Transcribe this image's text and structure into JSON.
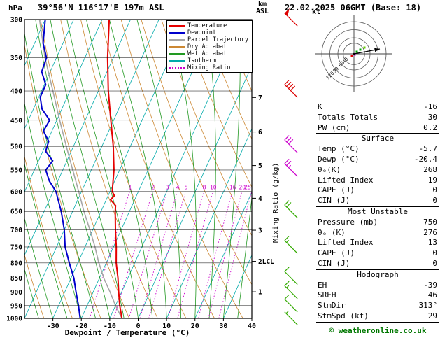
{
  "header": {
    "pressure_unit": "hPa",
    "station": "39°56'N 116°17'E 197m ASL",
    "datetime": "22.02.2025 06GMT (Base: 18)"
  },
  "legend": [
    {
      "label": "Temperature",
      "color": "#e60000",
      "style": "solid"
    },
    {
      "label": "Dewpoint",
      "color": "#0000cc",
      "style": "solid"
    },
    {
      "label": "Parcel Trajectory",
      "color": "#a6a6a6",
      "style": "solid"
    },
    {
      "label": "Dry Adiabat",
      "color": "#cc8833",
      "style": "solid"
    },
    {
      "label": "Wet Adiabat",
      "color": "#229922",
      "style": "solid"
    },
    {
      "label": "Isotherm",
      "color": "#00aaaa",
      "style": "solid"
    },
    {
      "label": "Mixing Ratio",
      "color": "#cc00cc",
      "style": "dotted"
    }
  ],
  "chart_data": {
    "type": "skew-t-log-p-sounding",
    "skew": 0.45,
    "pressure_axis": {
      "unit": "hPa",
      "levels": [
        300,
        350,
        400,
        450,
        500,
        550,
        600,
        650,
        700,
        750,
        800,
        850,
        900,
        950,
        1000
      ]
    },
    "temp_axis": {
      "label": "Dewpoint / Temperature (°C)",
      "min": -40,
      "max": 40,
      "ticks": [
        -30,
        -20,
        -10,
        0,
        10,
        20,
        30,
        40
      ]
    },
    "km_axis": {
      "unit_line1": "km",
      "unit_line2": "ASL",
      "lcl_km": 2,
      "lcl_label": "LCL",
      "ticks": [
        {
          "km": 1,
          "p": 898.7
        },
        {
          "km": 2,
          "p": 794.9
        },
        {
          "km": 3,
          "p": 701.1
        },
        {
          "km": 4,
          "p": 616.4
        },
        {
          "km": 5,
          "p": 540.2
        },
        {
          "km": 6,
          "p": 471.8
        },
        {
          "km": 7,
          "p": 410.6
        }
      ]
    },
    "mixing_ratio": {
      "label": "Mixing Ratio (g/kg)",
      "values": [
        1,
        2,
        3,
        4,
        5,
        8,
        10,
        16,
        20,
        25
      ]
    },
    "temperature_profile": [
      [
        1000,
        -5.7
      ],
      [
        950,
        -8.5
      ],
      [
        900,
        -11
      ],
      [
        850,
        -13.5
      ],
      [
        800,
        -16.5
      ],
      [
        750,
        -19
      ],
      [
        700,
        -22
      ],
      [
        650,
        -25
      ],
      [
        635,
        -25.8
      ],
      [
        620,
        -28.5
      ],
      [
        610,
        -27.8
      ],
      [
        600,
        -29.2
      ],
      [
        550,
        -32
      ],
      [
        500,
        -36
      ],
      [
        450,
        -41
      ],
      [
        400,
        -46.5
      ],
      [
        350,
        -52
      ],
      [
        300,
        -57.5
      ]
    ],
    "dewpoint_profile": [
      [
        1000,
        -20.4
      ],
      [
        950,
        -23
      ],
      [
        900,
        -26
      ],
      [
        850,
        -29
      ],
      [
        800,
        -33
      ],
      [
        750,
        -37
      ],
      [
        700,
        -40
      ],
      [
        650,
        -44
      ],
      [
        600,
        -49
      ],
      [
        575,
        -53
      ],
      [
        550,
        -56
      ],
      [
        530,
        -55
      ],
      [
        510,
        -59
      ],
      [
        490,
        -59.5
      ],
      [
        470,
        -63
      ],
      [
        450,
        -62.5
      ],
      [
        430,
        -67
      ],
      [
        410,
        -69.5
      ],
      [
        390,
        -69.5
      ],
      [
        370,
        -73
      ],
      [
        350,
        -73.5
      ],
      [
        330,
        -77
      ],
      [
        300,
        -80
      ]
    ],
    "parcel_profile": [
      [
        1000,
        -5.7
      ],
      [
        950,
        -10
      ],
      [
        900,
        -14
      ],
      [
        850,
        -18.5
      ],
      [
        795,
        -23
      ],
      [
        750,
        -26.5
      ],
      [
        700,
        -31
      ],
      [
        650,
        -36
      ],
      [
        600,
        -41
      ],
      [
        550,
        -46.5
      ],
      [
        500,
        -52.5
      ],
      [
        450,
        -59
      ],
      [
        400,
        -66
      ],
      [
        350,
        -74
      ],
      [
        300,
        -82
      ]
    ],
    "wind_barbs": [
      {
        "p": 300,
        "speed_kt": 50,
        "color": "#dd0000"
      },
      {
        "p": 400,
        "speed_kt": 40,
        "color": "#dd0000"
      },
      {
        "p": 500,
        "speed_kt": 30,
        "color": "#cc00cc"
      },
      {
        "p": 550,
        "speed_kt": 25,
        "color": "#cc00cc"
      },
      {
        "p": 650,
        "speed_kt": 20,
        "color": "#33aa00"
      },
      {
        "p": 750,
        "speed_kt": 15,
        "color": "#33aa00"
      },
      {
        "p": 850,
        "speed_kt": 10,
        "color": "#33aa00"
      },
      {
        "p": 900,
        "speed_kt": 15,
        "color": "#33aa00"
      },
      {
        "p": 950,
        "speed_kt": 10,
        "color": "#33aa00"
      },
      {
        "p": 1000,
        "speed_kt": 5,
        "color": "#33aa00"
      }
    ],
    "colors": {
      "temperature": "#e60000",
      "dewpoint": "#0000cc",
      "parcel": "#a6a6a6",
      "dry_adiabat": "#cc8833",
      "wet_adiabat": "#229922",
      "isotherm": "#00aaaa",
      "mixing_ratio": "#cc00cc"
    }
  },
  "hodograph": {
    "unit": "kt",
    "rings": [
      40,
      60,
      90,
      120
    ],
    "arrow": [
      37,
      -7
    ],
    "trace": [
      [
        4,
        -3,
        "#00aa00"
      ],
      [
        9,
        -6,
        "#00aa00"
      ],
      [
        15,
        -9,
        "#66cc00"
      ],
      [
        -3,
        3,
        "#dd0000"
      ],
      [
        1,
        1,
        "#cc00cc"
      ]
    ]
  },
  "stats": {
    "sections": [
      {
        "header": null,
        "rows": [
          {
            "label": "K",
            "value": "-16"
          },
          {
            "label": "Totals Totals",
            "value": "30"
          },
          {
            "label": "PW (cm)",
            "value": "0.2"
          }
        ]
      },
      {
        "header": "Surface",
        "rows": [
          {
            "label": "Temp (°C)",
            "value": "-5.7"
          },
          {
            "label": "Dewp (°C)",
            "value": "-20.4"
          },
          {
            "label": "θₑ(K)",
            "value": "268"
          },
          {
            "label": "Lifted Index",
            "value": "19"
          },
          {
            "label": "CAPE (J)",
            "value": "0"
          },
          {
            "label": "CIN (J)",
            "value": "0"
          }
        ]
      },
      {
        "header": "Most Unstable",
        "rows": [
          {
            "label": "Pressure (mb)",
            "value": "750"
          },
          {
            "label": "θₑ (K)",
            "value": "276"
          },
          {
            "label": "Lifted Index",
            "value": "13"
          },
          {
            "label": "CAPE (J)",
            "value": "0"
          },
          {
            "label": "CIN (J)",
            "value": "0"
          }
        ]
      },
      {
        "header": "Hodograph",
        "rows": [
          {
            "label": "EH",
            "value": "-39"
          },
          {
            "label": "SREH",
            "value": "46"
          },
          {
            "label": "StmDir",
            "value": "313°"
          },
          {
            "label": "StmSpd (kt)",
            "value": "29"
          }
        ]
      }
    ]
  },
  "footer": {
    "copyright": "© weatheronline.co.uk"
  }
}
